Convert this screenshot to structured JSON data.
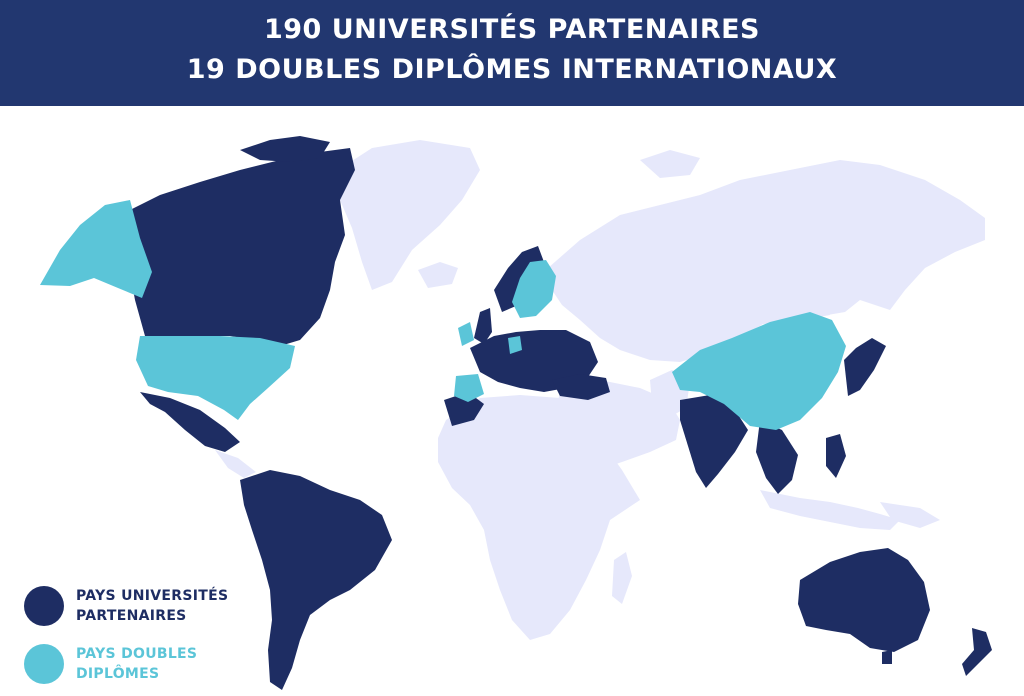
{
  "header": {
    "line1": "190 UNIVERSITÉS PARTENAIRES",
    "line2": "19 DOUBLES DIPLÔMES INTERNATIONAUX"
  },
  "colors": {
    "header_bg": "#223770",
    "partner": "#1e2d63",
    "double_degree": "#5bc5d8",
    "other_land": "#e6e8fb"
  },
  "legend": {
    "partner": {
      "label": "PAYS UNIVERSITÉS\nPARTENAIRES"
    },
    "double_degree": {
      "label": "PAYS DOUBLES\nDIPLÔMES"
    }
  }
}
